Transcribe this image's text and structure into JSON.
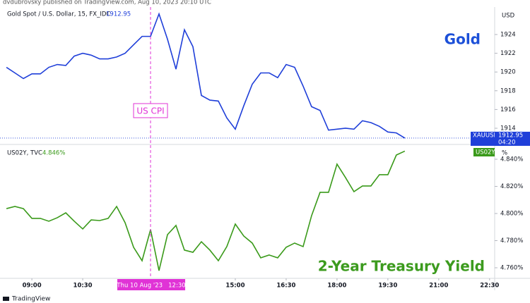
{
  "header": "dvdubrovsky published on TradingView.com, Aug 10, 2023 20:10 UTC",
  "footer": "TradingView",
  "cursor": {
    "x": 12.5,
    "label": "Thu 10 Aug '23   12:30",
    "annotation": "US CPI"
  },
  "chart_data": [
    {
      "type": "line",
      "legend_title": "Gold Spot / U.S. Dollar, 15, FX_IDC",
      "annotation": "Gold",
      "axis_unit": "USD",
      "countdown": "04:20",
      "xlim": [
        8.06,
        22.65
      ],
      "ylim": [
        1912.27,
        1926.93
      ],
      "yticks": [
        1914,
        1916,
        1918,
        1920,
        1922,
        1924
      ],
      "x": [
        8.25,
        8.5,
        8.75,
        9,
        9.25,
        9.5,
        9.75,
        10,
        10.25,
        10.5,
        10.75,
        11,
        11.25,
        11.5,
        11.75,
        12,
        12.25,
        12.5,
        12.75,
        13,
        13.25,
        13.5,
        13.75,
        14,
        14.25,
        14.5,
        14.75,
        15,
        15.25,
        15.5,
        15.75,
        16,
        16.25,
        16.5,
        16.75,
        17,
        17.25,
        17.5,
        17.75,
        18,
        18.25,
        18.5,
        18.75,
        19,
        19.25,
        19.5,
        19.75,
        20
      ],
      "series": [
        {
          "name": "XAUUSD",
          "color": "#1f3fd9",
          "values": [
            1920.5,
            1919.9,
            1919.3,
            1919.8,
            1919.8,
            1920.5,
            1920.8,
            1920.7,
            1921.7,
            1922.0,
            1921.8,
            1921.4,
            1921.4,
            1921.6,
            1922.0,
            1922.9,
            1923.8,
            1923.8,
            1926.2,
            1923.5,
            1920.3,
            1924.5,
            1922.7,
            1917.5,
            1917.0,
            1916.9,
            1915.1,
            1913.9,
            1916.4,
            1918.7,
            1919.9,
            1919.9,
            1919.4,
            1920.8,
            1920.5,
            1918.5,
            1916.3,
            1915.9,
            1913.8,
            1913.9,
            1914.0,
            1913.9,
            1914.8,
            1914.6,
            1914.2,
            1913.6,
            1913.5,
            1912.95
          ]
        }
      ]
    },
    {
      "type": "line",
      "legend_title": "US02Y, TVC",
      "last_value_label": "4.846%",
      "annotation": "2-Year Treasury Yield",
      "axis_unit": "%",
      "xlim": [
        8.06,
        22.65
      ],
      "xticks": [
        {
          "value": 9,
          "label": "09:00"
        },
        {
          "value": 10.5,
          "label": "10:30"
        },
        {
          "value": 15,
          "label": "15:00"
        },
        {
          "value": 16.5,
          "label": "16:30"
        },
        {
          "value": 18,
          "label": "18:00"
        },
        {
          "value": 19.5,
          "label": "19:30"
        },
        {
          "value": 21,
          "label": "21:00"
        },
        {
          "value": 22.5,
          "label": "22:30"
        }
      ],
      "ylim": [
        4.7522,
        4.8509
      ],
      "yticks": [
        {
          "value": 4.76,
          "label": "4.760%"
        },
        {
          "value": 4.78,
          "label": "4.780%"
        },
        {
          "value": 4.8,
          "label": "4.800%"
        },
        {
          "value": 4.82,
          "label": "4.820%"
        },
        {
          "value": 4.84,
          "label": "4.840%"
        }
      ],
      "x": [
        8.25,
        8.5,
        8.75,
        9,
        9.25,
        9.5,
        9.75,
        10,
        10.25,
        10.5,
        10.75,
        11,
        11.25,
        11.5,
        11.75,
        12,
        12.25,
        12.5,
        12.75,
        13,
        13.25,
        13.5,
        13.75,
        14,
        14.25,
        14.5,
        14.75,
        15,
        15.25,
        15.5,
        15.75,
        16,
        16.25,
        16.5,
        16.75,
        17,
        17.25,
        17.5,
        17.75,
        18,
        18.25,
        18.5,
        18.75,
        19,
        19.25,
        19.5,
        19.75,
        20
      ],
      "series": [
        {
          "name": "US02Y",
          "color": "#3a9a1a",
          "values": [
            4.8036,
            4.8052,
            4.8036,
            4.7964,
            4.7964,
            4.7943,
            4.7969,
            4.8005,
            4.7943,
            4.7886,
            4.7953,
            4.7948,
            4.7964,
            4.8052,
            4.7932,
            4.7751,
            4.7652,
            4.7881,
            4.7579,
            4.7844,
            4.7912,
            4.773,
            4.7714,
            4.7792,
            4.773,
            4.7652,
            4.7756,
            4.7922,
            4.7834,
            4.7782,
            4.7673,
            4.7694,
            4.7673,
            4.7751,
            4.7782,
            4.7756,
            4.7984,
            4.8156,
            4.8156,
            4.8364,
            4.8265,
            4.8161,
            4.8203,
            4.8203,
            4.8286,
            4.8286,
            4.8431,
            4.846
          ]
        }
      ]
    }
  ]
}
